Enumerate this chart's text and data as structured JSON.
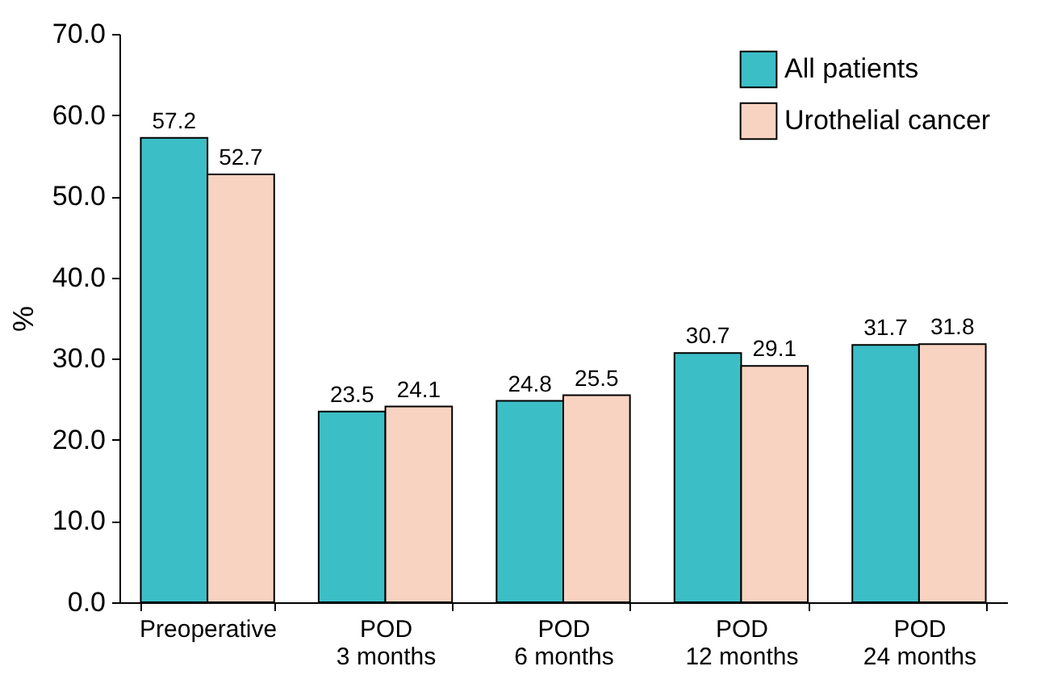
{
  "chart_data": {
    "type": "bar",
    "categories": [
      "Preoperative",
      "POD\n3 months",
      "POD\n6 months",
      "POD\n12 months",
      "POD\n24 months"
    ],
    "series": [
      {
        "name": "All patients",
        "color": "#3cbec6",
        "values": [
          57.2,
          23.5,
          24.8,
          30.7,
          31.7
        ]
      },
      {
        "name": "Urothelial cancer",
        "color": "#f9d3c1",
        "values": [
          52.7,
          24.1,
          25.5,
          29.1,
          31.8
        ]
      }
    ],
    "ylabel": "%",
    "ylim": [
      0,
      70
    ],
    "yticks": [
      {
        "value": 0,
        "label": "0.0"
      },
      {
        "value": 10,
        "label": "10.0"
      },
      {
        "value": 20,
        "label": "20.0"
      },
      {
        "value": 30,
        "label": "30.0"
      },
      {
        "value": 40,
        "label": "40.0"
      },
      {
        "value": 50,
        "label": "50.0"
      },
      {
        "value": 60,
        "label": "60.0"
      },
      {
        "value": 70,
        "label": "70.0"
      }
    ],
    "grid": false,
    "legend": "top right",
    "data_labels": true
  }
}
